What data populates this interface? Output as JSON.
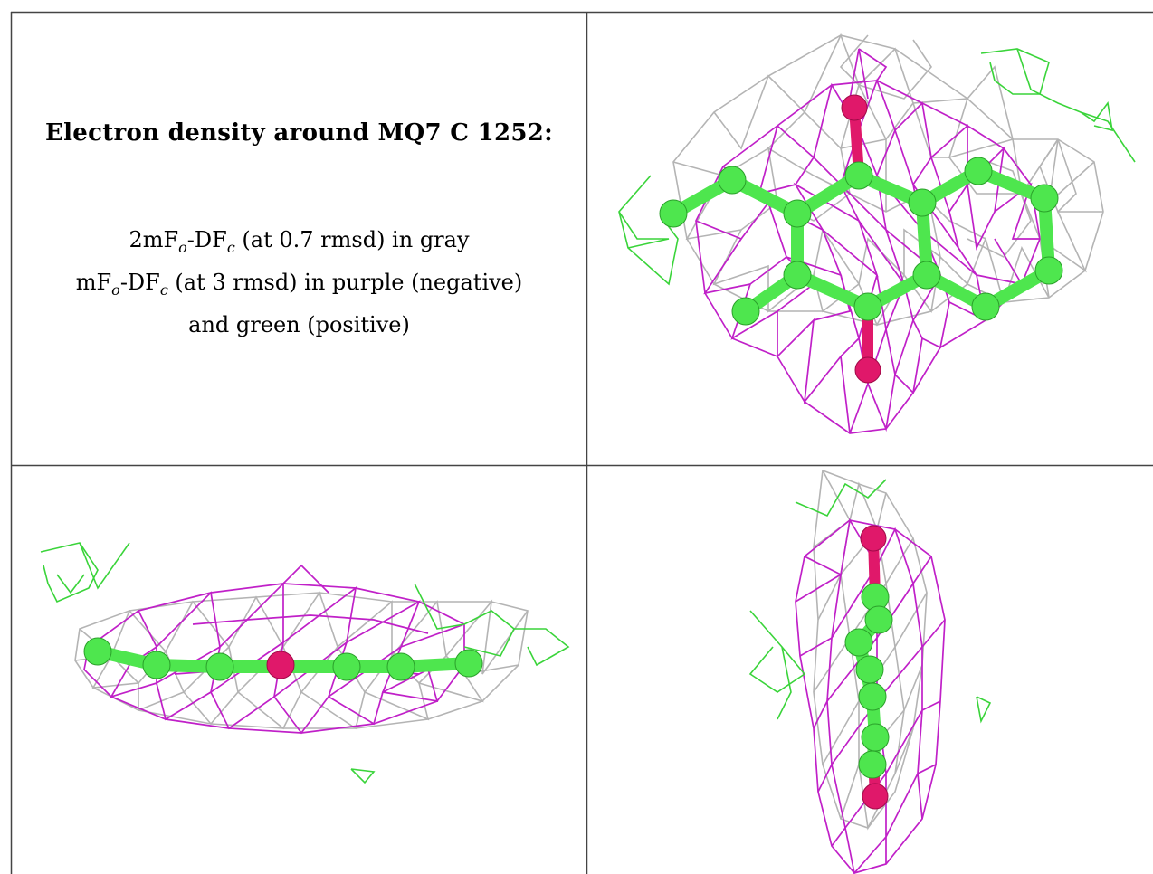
{
  "caption": {
    "title": "Electron density around MQ7 C 1252:",
    "line1_prefix": "2mF",
    "line1_sub1": "o",
    "line1_mid": "-DF",
    "line1_sub2": "c",
    "line1_suffix": " (at 0.7 rmsd) in gray",
    "line2_prefix": "mF",
    "line2_sub1": "o",
    "line2_mid": "-DF",
    "line2_sub2": "c",
    "line2_suffix": " (at 3 rmsd) in purple (negative)",
    "line3": "and green (positive)"
  },
  "colors": {
    "gray_mesh": "#b4b4b4",
    "purple_mesh": "#c020c8",
    "green_mesh": "#3ad43a",
    "carbon": "#4ee64e",
    "oxygen": "#e0186a",
    "border": "#444444"
  },
  "views": [
    {
      "name": "top-view"
    },
    {
      "name": "side-view"
    },
    {
      "name": "end-view"
    }
  ]
}
